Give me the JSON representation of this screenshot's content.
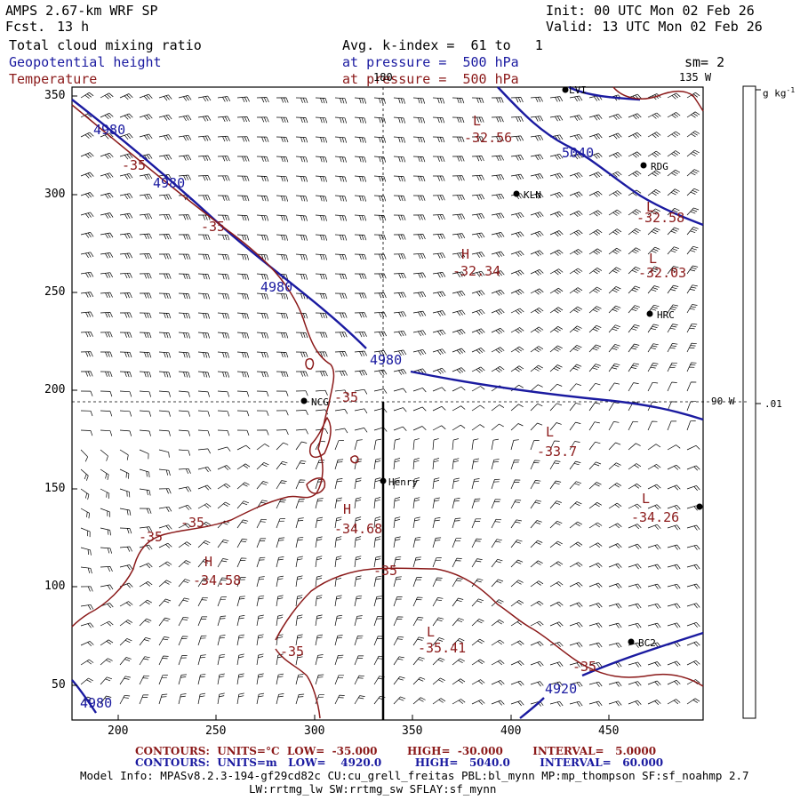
{
  "header": {
    "model": "AMPS 2.67-km WRF SP",
    "fcst_label": "Fcst.",
    "fcst_value": "13 h",
    "init": "Init: 00 UTC Mon 02 Feb 26",
    "valid": "Valid: 13 UTC Mon 02 Feb 26",
    "field1": "Total cloud mixing ratio",
    "field2": "Geopotential height",
    "field3": "Temperature",
    "avg": "Avg. k-index =  61 to   1",
    "pressure1": "at pressure =  500 hPa",
    "pressure2": "at pressure =  500 hPa",
    "sm": "sm= 2",
    "lon135": "135 W",
    "lon180": "180",
    "lon90": "90 W",
    "colors": {
      "blue": "#1a1aa0",
      "red": "#8b1a1a"
    }
  },
  "axes": {
    "x_ticks": [
      "200",
      "250",
      "300",
      "350",
      "400",
      "450"
    ],
    "y_ticks": [
      "350",
      "300",
      "250",
      "200",
      "150",
      "100",
      "50"
    ]
  },
  "colorbar": {
    "units": "g kg",
    "units_exp": "-1",
    "value": ".01"
  },
  "stations": [
    {
      "name": "LVI"
    },
    {
      "name": "RDG"
    },
    {
      "name": "KLN"
    },
    {
      "name": "HRC"
    },
    {
      "name": "NCG"
    },
    {
      "name": "Henry"
    },
    {
      "name": "BC2"
    }
  ],
  "height_labels": [
    "4980",
    "4980",
    "4980",
    "4980",
    "5040",
    "4920",
    "4980"
  ],
  "temp_labels": [
    "-35",
    "-35",
    "-35",
    "-35",
    "-35",
    "-35",
    "-35",
    "-35"
  ],
  "extrema": [
    {
      "type": "L",
      "value": "-32.56"
    },
    {
      "type": "H",
      "value": "-32.34"
    },
    {
      "type": "L",
      "value": "-32.58"
    },
    {
      "type": "L",
      "value": "-32.03"
    },
    {
      "type": "L",
      "value": "-33.7"
    },
    {
      "type": "H",
      "value": "-34.68"
    },
    {
      "type": "L",
      "value": "-34.26"
    },
    {
      "type": "H",
      "value": "-34.58"
    },
    {
      "type": "L",
      "value": "-35.41"
    }
  ],
  "footer": {
    "temp_contours": "CONTOURS:  UNITS=°C  LOW=  -35.000        HIGH=  -30.000        INTERVAL=   5.0000",
    "height_contours": "CONTOURS:  UNITS=m   LOW=    4920.0         HIGH=   5040.0        INTERVAL=   60.000",
    "model_info": "Model Info: MPASv8.2.3-194-gf29cd82c CU:cu_grell_freitas PBL:bl_mynn MP:mp_thompson SF:sf_noahmp 2.7",
    "model_info2": "LW:rrtmg_lw SW:rrtmg_sw SFLAY:sf_mynn"
  }
}
